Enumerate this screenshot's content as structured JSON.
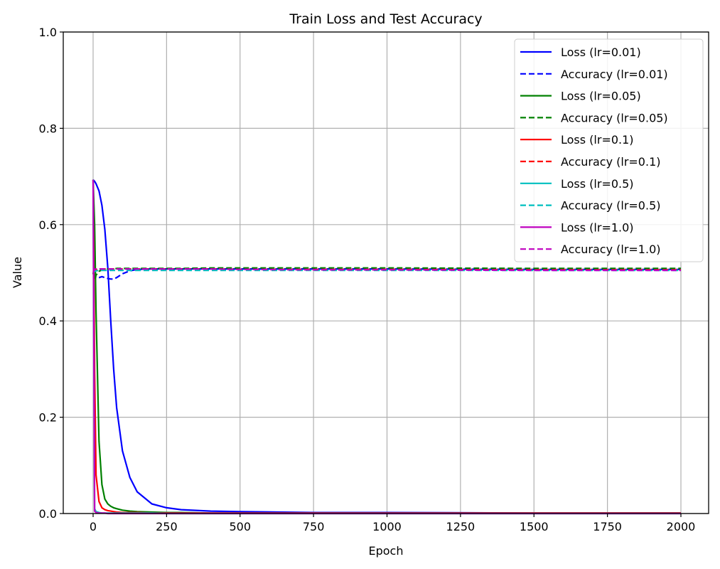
{
  "chart_data": {
    "type": "line",
    "title": "Train Loss and Test Accuracy",
    "xlabel": "Epoch",
    "ylabel": "Value",
    "xlim": [
      -100,
      2100
    ],
    "ylim": [
      0.0,
      1.0
    ],
    "grid": true,
    "legend_position": "upper right",
    "x_ticks": [
      "0",
      "250",
      "500",
      "750",
      "1000",
      "1250",
      "1500",
      "1750",
      "2000"
    ],
    "y_ticks": [
      "0.0",
      "0.2",
      "0.4",
      "0.6",
      "0.8",
      "1.0"
    ],
    "x": [
      0,
      5,
      10,
      20,
      30,
      40,
      50,
      60,
      70,
      80,
      100,
      125,
      150,
      200,
      250,
      300,
      400,
      500,
      750,
      1000,
      1500,
      2000
    ],
    "series": [
      {
        "name": "Loss (lr=0.01)",
        "color": "#0000ff",
        "style": "solid",
        "values": [
          0.693,
          0.69,
          0.685,
          0.67,
          0.64,
          0.59,
          0.51,
          0.4,
          0.3,
          0.22,
          0.13,
          0.075,
          0.045,
          0.02,
          0.012,
          0.008,
          0.005,
          0.004,
          0.002,
          0.002,
          0.001,
          0.001
        ]
      },
      {
        "name": "Accuracy (lr=0.01)",
        "color": "#0000ff",
        "style": "dashed",
        "values": [
          0.5,
          0.495,
          0.49,
          0.49,
          0.492,
          0.49,
          0.488,
          0.487,
          0.487,
          0.49,
          0.498,
          0.504,
          0.507,
          0.508,
          0.508,
          0.508,
          0.508,
          0.508,
          0.508,
          0.508,
          0.507,
          0.507
        ]
      },
      {
        "name": "Loss (lr=0.05)",
        "color": "#008000",
        "style": "solid",
        "values": [
          0.693,
          0.6,
          0.42,
          0.15,
          0.06,
          0.03,
          0.02,
          0.015,
          0.012,
          0.01,
          0.007,
          0.005,
          0.004,
          0.003,
          0.002,
          0.002,
          0.001,
          0.001,
          0.001,
          0.001,
          0.001,
          0.001
        ]
      },
      {
        "name": "Accuracy (lr=0.05)",
        "color": "#008000",
        "style": "dashed",
        "values": [
          0.5,
          0.485,
          0.495,
          0.503,
          0.506,
          0.507,
          0.508,
          0.508,
          0.508,
          0.509,
          0.509,
          0.509,
          0.509,
          0.509,
          0.509,
          0.509,
          0.51,
          0.51,
          0.51,
          0.51,
          0.509,
          0.509
        ]
      },
      {
        "name": "Loss (lr=0.1)",
        "color": "#ff0000",
        "style": "solid",
        "values": [
          0.693,
          0.3,
          0.08,
          0.025,
          0.012,
          0.008,
          0.006,
          0.005,
          0.004,
          0.003,
          0.002,
          0.002,
          0.002,
          0.001,
          0.001,
          0.001,
          0.001,
          0.001,
          0.001,
          0.001,
          0.001,
          0.001
        ]
      },
      {
        "name": "Accuracy (lr=0.1)",
        "color": "#ff0000",
        "style": "dashed",
        "values": [
          0.5,
          0.505,
          0.507,
          0.508,
          0.508,
          0.508,
          0.508,
          0.508,
          0.508,
          0.508,
          0.508,
          0.508,
          0.508,
          0.508,
          0.508,
          0.508,
          0.508,
          0.507,
          0.507,
          0.507,
          0.506,
          0.506
        ]
      },
      {
        "name": "Loss (lr=0.5)",
        "color": "#00bfbf",
        "style": "solid",
        "values": [
          0.693,
          0.01,
          0.004,
          0.002,
          0.001,
          0.001,
          0.001,
          0.001,
          0.001,
          0.001,
          0.001,
          0.001,
          0.001,
          0.001,
          0.0,
          0.0,
          0.0,
          0.0,
          0.0,
          0.0,
          0.0,
          0.0
        ]
      },
      {
        "name": "Accuracy (lr=0.5)",
        "color": "#00bfbf",
        "style": "dashed",
        "values": [
          0.5,
          0.503,
          0.504,
          0.505,
          0.505,
          0.505,
          0.505,
          0.505,
          0.505,
          0.505,
          0.505,
          0.505,
          0.505,
          0.505,
          0.505,
          0.505,
          0.505,
          0.505,
          0.505,
          0.505,
          0.505,
          0.505
        ]
      },
      {
        "name": "Loss (lr=1.0)",
        "color": "#bf00bf",
        "style": "solid",
        "values": [
          0.693,
          0.005,
          0.002,
          0.001,
          0.001,
          0.001,
          0.0,
          0.0,
          0.0,
          0.0,
          0.0,
          0.0,
          0.0,
          0.0,
          0.0,
          0.0,
          0.0,
          0.0,
          0.0,
          0.0,
          0.0,
          0.0
        ]
      },
      {
        "name": "Accuracy (lr=1.0)",
        "color": "#bf00bf",
        "style": "dashed",
        "values": [
          0.5,
          0.507,
          0.508,
          0.508,
          0.508,
          0.508,
          0.508,
          0.508,
          0.508,
          0.508,
          0.508,
          0.508,
          0.508,
          0.508,
          0.508,
          0.508,
          0.508,
          0.507,
          0.506,
          0.506,
          0.505,
          0.505
        ]
      }
    ]
  }
}
